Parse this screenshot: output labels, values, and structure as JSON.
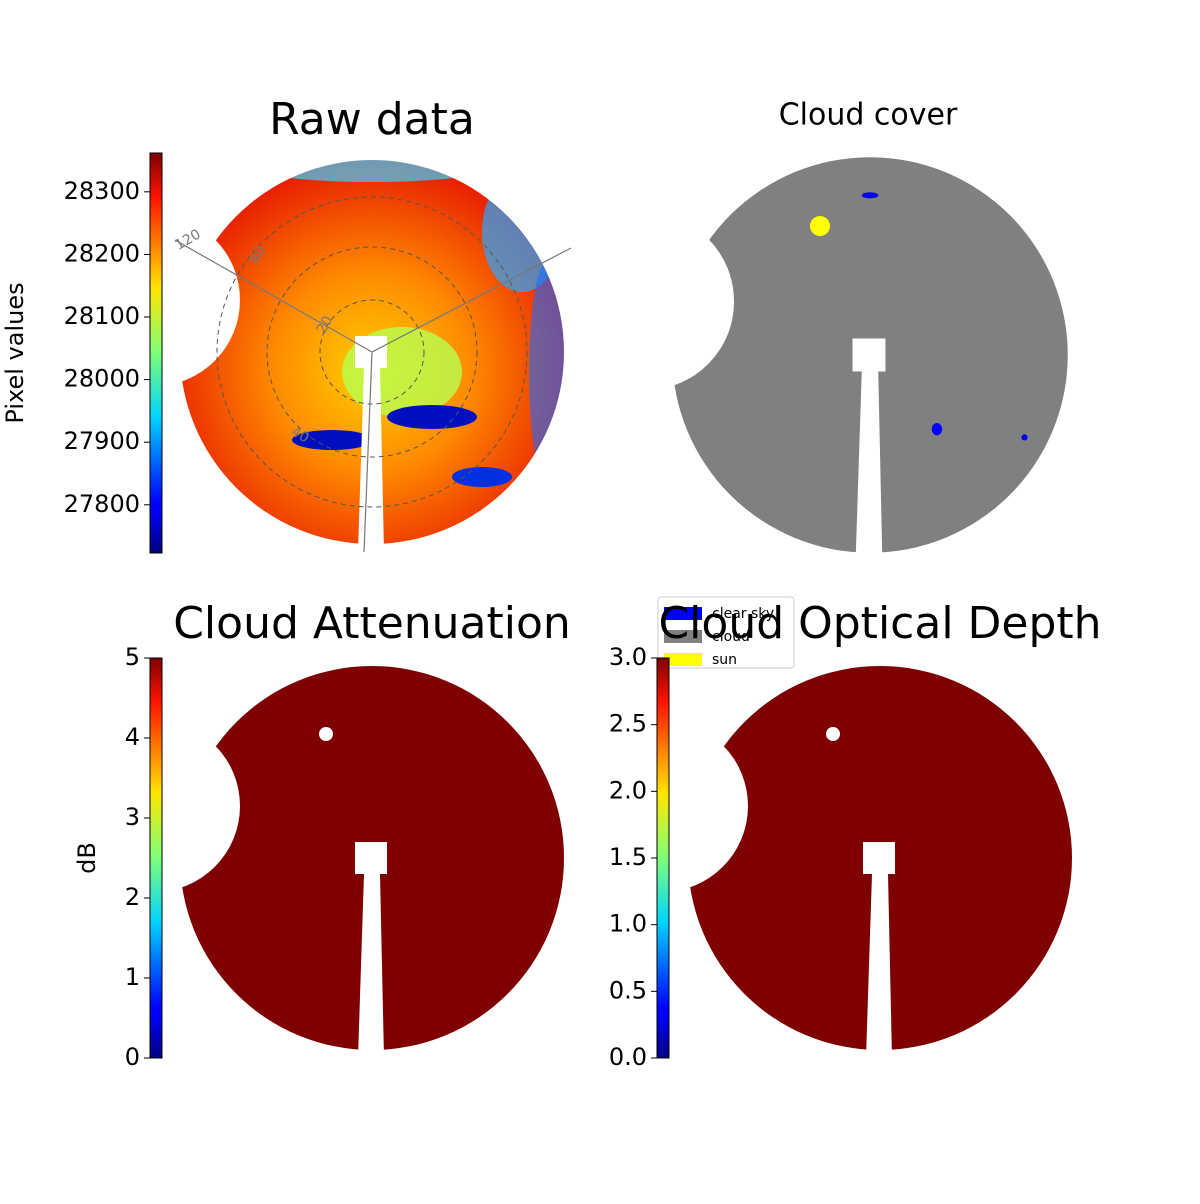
{
  "chart_data": [
    {
      "type": "image",
      "title": "Raw data",
      "ylabel": "Pixel values",
      "colormap": "jet",
      "ylim": [
        27723,
        28362
      ],
      "yticks": [
        27800,
        27900,
        28000,
        28100,
        28200,
        28300
      ],
      "polar_labels": [
        "120",
        "80",
        "20",
        "40"
      ]
    },
    {
      "type": "classes",
      "title": "Cloud cover",
      "legend": [
        {
          "name": "clear sky",
          "color": "#0000ff"
        },
        {
          "name": "cloud",
          "color": "#808080"
        },
        {
          "name": "sun",
          "color": "#ffff00"
        }
      ]
    },
    {
      "type": "image",
      "title": "Cloud Attenuation",
      "ylabel": "dB",
      "colormap": "jet",
      "ylim": [
        0,
        5
      ],
      "yticks": [
        0,
        1,
        2,
        3,
        4,
        5
      ]
    },
    {
      "type": "image",
      "title": "Cloud Optical Depth",
      "colormap": "jet",
      "ylim": [
        0,
        3
      ],
      "yticks": [
        {
          "value": 0,
          "label": "0.0"
        },
        {
          "value": 0.5,
          "label": "0.5"
        },
        {
          "value": 1,
          "label": "1.0"
        },
        {
          "value": 1.5,
          "label": "1.5"
        },
        {
          "value": 2,
          "label": "2.0"
        },
        {
          "value": 2.5,
          "label": "2.5"
        },
        {
          "value": 3,
          "label": "3.0"
        }
      ]
    }
  ]
}
